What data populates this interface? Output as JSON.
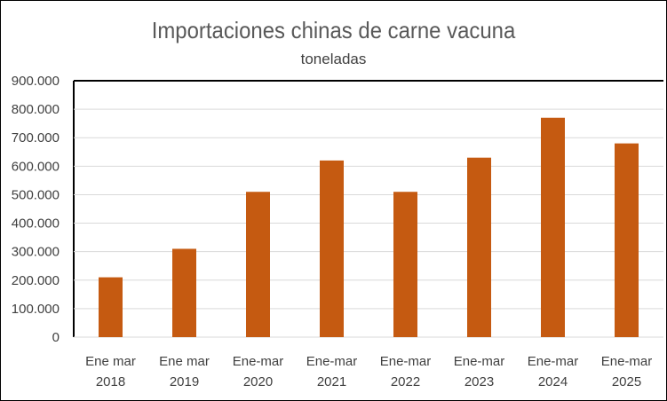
{
  "chart_data": {
    "type": "bar",
    "title": "Importaciones chinas de carne vacuna",
    "subtitle": "toneladas",
    "xlabel": "",
    "ylabel": "",
    "categories": [
      [
        "Ene mar",
        "2018"
      ],
      [
        "Ene mar",
        "2019"
      ],
      [
        "Ene-mar",
        "2020"
      ],
      [
        "Ene-mar",
        "2021"
      ],
      [
        "Ene-mar",
        "2022"
      ],
      [
        "Ene-mar",
        "2023"
      ],
      [
        "Ene-mar",
        "2024"
      ],
      [
        "Ene-mar",
        "2025"
      ]
    ],
    "values": [
      210000,
      310000,
      510000,
      620000,
      510000,
      630000,
      770000,
      680000
    ],
    "ylim": [
      0,
      900000
    ],
    "yticks": [
      "0",
      "100.000",
      "200.000",
      "300.000",
      "400.000",
      "500.000",
      "600.000",
      "700.000",
      "800.000",
      "900.000"
    ],
    "grid": true,
    "bar_color": "#C55A11",
    "grid_color": "#D9D9D9",
    "legend": "none"
  }
}
